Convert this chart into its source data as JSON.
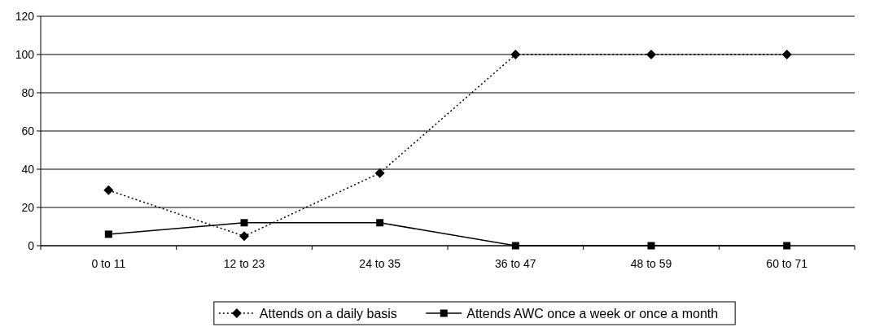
{
  "chart_data": {
    "type": "line",
    "categories": [
      "0 to 11",
      "12 to 23",
      "24 to 35",
      "36 to 47",
      "48 to 59",
      "60 to 71"
    ],
    "series": [
      {
        "name": "Attends on a daily basis",
        "color": "#000000",
        "values": [
          29,
          5,
          38,
          100,
          100,
          100
        ],
        "line_style": "dotted",
        "marker": "diamond"
      },
      {
        "name": "Attends AWC once a week or once a month",
        "color": "#000000",
        "values": [
          6,
          12,
          12,
          0,
          0,
          0
        ],
        "line_style": "solid",
        "marker": "square"
      }
    ],
    "ylim": [
      0,
      120
    ],
    "yticks": [
      0,
      20,
      40,
      60,
      80,
      100,
      120
    ],
    "grid": "y",
    "legend": "bottom"
  }
}
